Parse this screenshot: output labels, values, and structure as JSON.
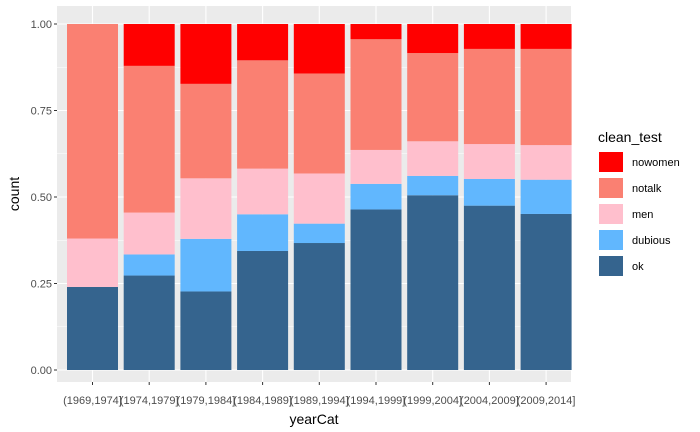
{
  "chart_data": {
    "type": "bar",
    "stacked": "fill",
    "xlabel": "yearCat",
    "ylabel": "count",
    "ylim": [
      0,
      1
    ],
    "y_ticks": [
      "0.00",
      "0.25",
      "0.50",
      "0.75",
      "1.00"
    ],
    "grid": true,
    "legend_title": "clean_test",
    "legend_position": "right",
    "categories": [
      "(1969,1974]",
      "(1974,1979]",
      "(1979,1984]",
      "(1984,1989]",
      "(1989,1994]",
      "(1994,1999]",
      "(1999,2004]",
      "(2004,2009]",
      "(2009,2014]"
    ],
    "series": [
      {
        "name": "ok",
        "color": "#35648E",
        "values": [
          0.24,
          0.273,
          0.227,
          0.344,
          0.367,
          0.464,
          0.505,
          0.475,
          0.451
        ]
      },
      {
        "name": "dubious",
        "color": "#61B7FE",
        "values": [
          0.0,
          0.061,
          0.152,
          0.106,
          0.056,
          0.074,
          0.056,
          0.077,
          0.099
        ]
      },
      {
        "name": "men",
        "color": "#FFBFCD",
        "values": [
          0.14,
          0.121,
          0.175,
          0.132,
          0.145,
          0.098,
          0.1,
          0.101,
          0.1
        ]
      },
      {
        "name": "notalk",
        "color": "#FA8072",
        "values": [
          0.62,
          0.424,
          0.273,
          0.313,
          0.289,
          0.32,
          0.255,
          0.275,
          0.278
        ]
      },
      {
        "name": "nowomen",
        "color": "#FF0000",
        "values": [
          0.0,
          0.121,
          0.173,
          0.105,
          0.143,
          0.044,
          0.084,
          0.072,
          0.072
        ]
      }
    ]
  }
}
